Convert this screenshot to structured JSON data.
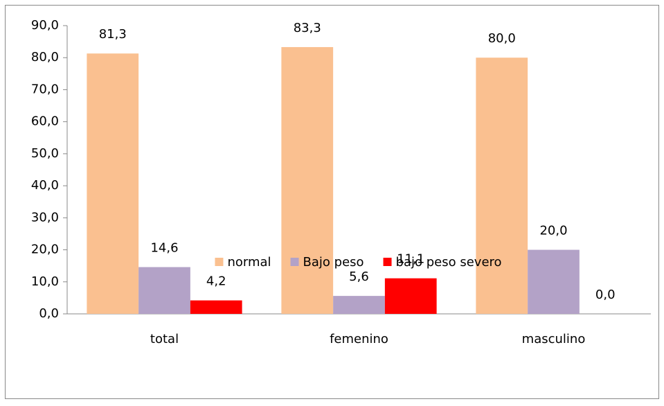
{
  "chart_data": {
    "type": "bar",
    "categories": [
      "total",
      "femenino",
      "masculino"
    ],
    "series": [
      {
        "name": "normal",
        "color": "#FAC090",
        "values": [
          81.3,
          83.3,
          80.0
        ],
        "value_labels": [
          "81,3",
          "83,3",
          "80,0"
        ]
      },
      {
        "name": "Bajo peso",
        "color": "#B3A2C7",
        "values": [
          14.6,
          5.6,
          20.0
        ],
        "value_labels": [
          "14,6",
          "5,6",
          "20,0"
        ]
      },
      {
        "name": "bajo peso severo",
        "color": "#FF0000",
        "values": [
          4.2,
          11.1,
          0.0
        ],
        "value_labels": [
          "4,2",
          "11,1",
          "0,0"
        ]
      }
    ],
    "ylim": [
      0,
      90
    ],
    "yticks": [
      {
        "value": 0,
        "label": "0,0"
      },
      {
        "value": 10,
        "label": "10,0"
      },
      {
        "value": 20,
        "label": "20,0"
      },
      {
        "value": 30,
        "label": "30,0"
      },
      {
        "value": 40,
        "label": "40,0"
      },
      {
        "value": 50,
        "label": "50,0"
      },
      {
        "value": 60,
        "label": "60,0"
      },
      {
        "value": 70,
        "label": "70,0"
      },
      {
        "value": 80,
        "label": "80,0"
      },
      {
        "value": 90,
        "label": "90,0"
      }
    ],
    "legend": "bottom",
    "grid": false
  }
}
